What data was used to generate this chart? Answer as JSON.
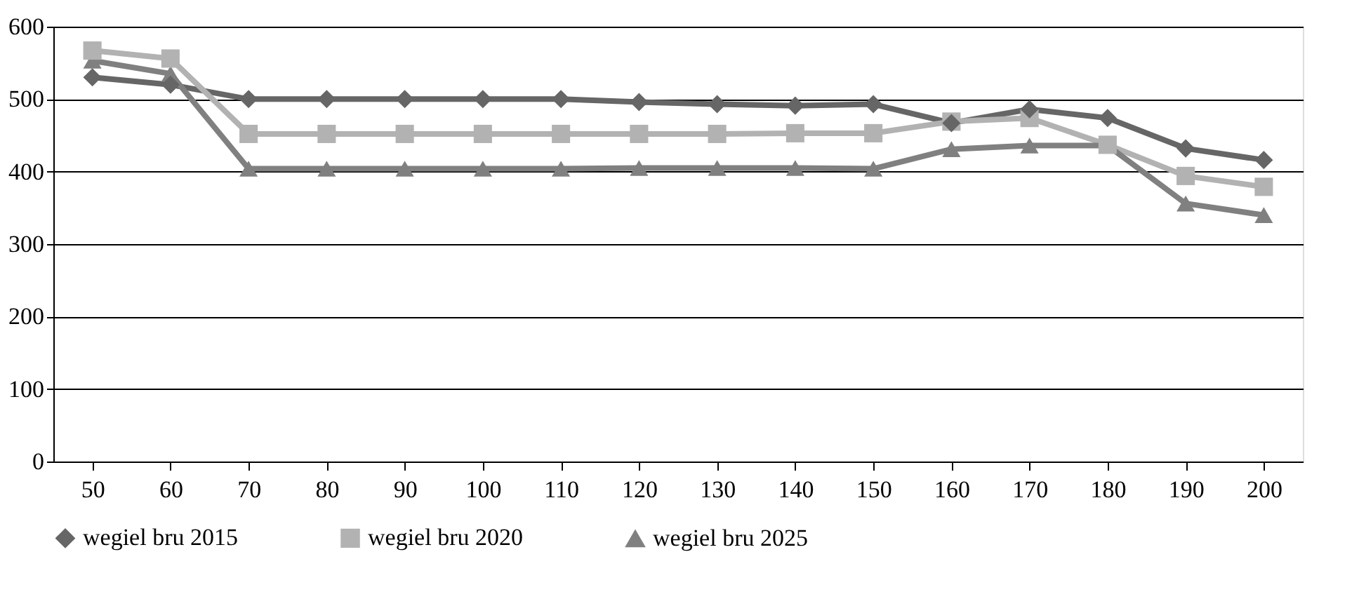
{
  "chart_data": {
    "type": "line",
    "categories": [
      "50",
      "60",
      "70",
      "80",
      "90",
      "100",
      "110",
      "120",
      "130",
      "140",
      "150",
      "160",
      "170",
      "180",
      "190",
      "200"
    ],
    "series": [
      {
        "name": "wegiel bru 2015",
        "color": "#666666",
        "marker": "diamond",
        "values": [
          530,
          520,
          500,
          500,
          500,
          500,
          500,
          496,
          493,
          491,
          493,
          467,
          486,
          474,
          432,
          416
        ]
      },
      {
        "name": "wegiel bru 2020",
        "color": "#b2b2b2",
        "marker": "square",
        "values": [
          567,
          556,
          452,
          452,
          452,
          452,
          452,
          452,
          452,
          453,
          453,
          469,
          474,
          437,
          394,
          379
        ]
      },
      {
        "name": "wegiel bru 2025",
        "color": "#808080",
        "marker": "triangle",
        "values": [
          553,
          535,
          404,
          404,
          404,
          404,
          404,
          405,
          405,
          405,
          404,
          431,
          436,
          436,
          356,
          340
        ]
      }
    ],
    "ylim": [
      0,
      600
    ],
    "yticks": [
      0,
      100,
      200,
      300,
      400,
      500,
      600
    ],
    "grid": "y",
    "legend": "bottom",
    "line_style": "solid"
  }
}
